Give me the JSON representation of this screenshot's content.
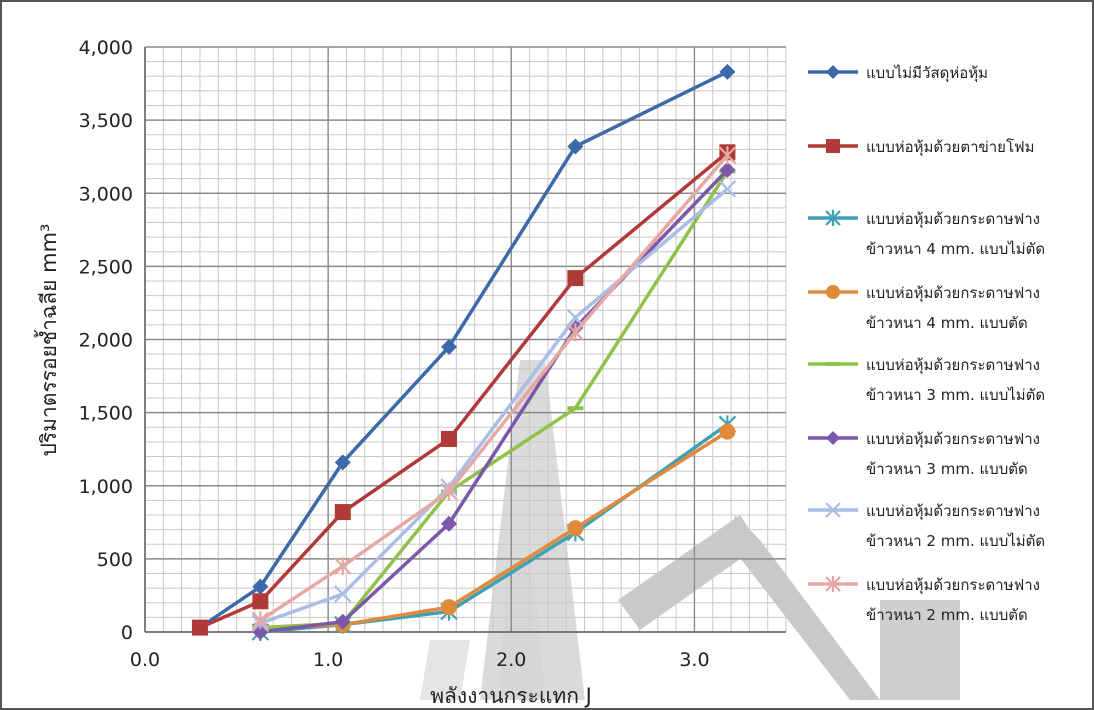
{
  "chart_data": {
    "type": "line",
    "title": "",
    "xlabel": "พลังงานกระแทก J",
    "ylabel": "ปริมาตรรอยช้ำฉลีย mm³",
    "xlim": [
      0.0,
      3.5
    ],
    "ylim": [
      0,
      4000
    ],
    "x_ticks": [
      "0.0",
      "1.0",
      "2.0",
      "3.0"
    ],
    "y_ticks": [
      "0",
      "500",
      "1,000",
      "1,500",
      "2,000",
      "2,500",
      "3,000",
      "3,500",
      "4,000"
    ],
    "grid": true,
    "legend_position": "right",
    "series": [
      {
        "name": "แบบไม่มีวัสดุห่อหุ้ม",
        "color": "#3c6aa8",
        "marker": "diamond",
        "x": [
          0.3,
          0.63,
          1.08,
          1.66,
          2.35,
          3.18
        ],
        "y": [
          30,
          310,
          1160,
          1950,
          3320,
          3830
        ]
      },
      {
        "name": "แบบห่อหุ้มด้วยตาข่ายโฟม",
        "color": "#b03a38",
        "marker": "square",
        "x": [
          0.3,
          0.63,
          1.08,
          1.66,
          2.35,
          3.18
        ],
        "y": [
          30,
          210,
          820,
          1320,
          2420,
          3280
        ]
      },
      {
        "name": "แบบห่อหุ้มด้วยกระดาษฟาง",
        "name2": "ข้าวหนา 4 mm. แบบไม่ตัด",
        "color": "#3fa1b5",
        "marker": "star",
        "x": [
          0.63,
          1.08,
          1.66,
          2.35,
          3.18
        ],
        "y": [
          0,
          50,
          140,
          680,
          1420
        ]
      },
      {
        "name": "แบบห่อหุ้มด้วยกระดาษฟาง",
        "name2": "ข้าวหนา 4 mm. แบบตัด",
        "color": "#e08a3c",
        "marker": "circle",
        "x": [
          0.63,
          1.08,
          1.66,
          2.35,
          3.18
        ],
        "y": [
          20,
          50,
          170,
          710,
          1370
        ]
      },
      {
        "name": "แบบห่อหุ้มด้วยกระดาษฟาง",
        "name2": "ข้าวหนา 3 mm. แบบไม่ตัด",
        "color": "#8fc24a",
        "marker": "dash",
        "x": [
          0.63,
          1.08,
          1.66,
          2.35,
          3.18
        ],
        "y": [
          30,
          60,
          960,
          1530,
          3150
        ]
      },
      {
        "name": "แบบห่อหุ้มด้วยกระดาษฟาง",
        "name2": "ข้าวหนา 3 mm. แบบตัด",
        "color": "#7b58a8",
        "marker": "diamond",
        "x": [
          0.63,
          1.08,
          1.66,
          2.35,
          3.18
        ],
        "y": [
          0,
          70,
          740,
          2080,
          3160
        ]
      },
      {
        "name": "แบบห่อหุ้มด้วยกระดาษฟาง",
        "name2": "ข้าวหนา 2 mm. แบบไม่ตัด",
        "color": "#a9bde6",
        "marker": "x",
        "x": [
          0.63,
          1.08,
          1.66,
          2.35,
          3.18
        ],
        "y": [
          60,
          260,
          990,
          2150,
          3030
        ]
      },
      {
        "name": "แบบห่อหุ้มด้วยกระดาษฟาง",
        "name2": "ข้าวหนา 2 mm. แบบตัด",
        "color": "#e6a8a4",
        "marker": "star",
        "x": [
          0.63,
          1.08,
          1.66,
          2.35,
          3.18
        ],
        "y": [
          80,
          450,
          960,
          2050,
          3260
        ]
      }
    ]
  }
}
